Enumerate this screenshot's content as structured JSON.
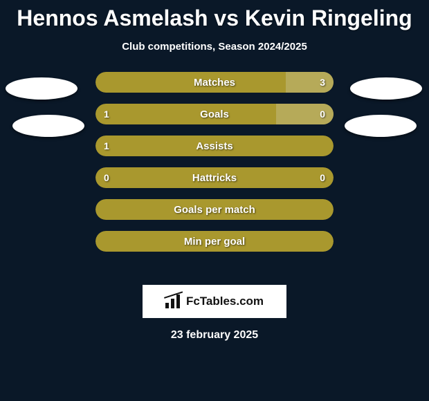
{
  "title": "Hennos Asmelash vs Kevin Ringeling",
  "subtitle": "Club competitions, Season 2024/2025",
  "date": "23 february 2025",
  "brand": {
    "text": "FcTables.com"
  },
  "colors": {
    "background": "#0a1828",
    "bar_primary": "#a9982e",
    "bar_secondary": "#b6aa59",
    "avatar": "#ffffff",
    "brand_bg": "#ffffff",
    "brand_fg": "#111111",
    "text": "#ffffff"
  },
  "avatars": {
    "left": [
      {
        "present": true
      },
      {
        "present": true
      }
    ],
    "right": [
      {
        "present": true
      },
      {
        "present": true
      }
    ]
  },
  "stats": [
    {
      "label": "Matches",
      "left_value": "",
      "right_value": "3",
      "left_pct": 0,
      "right_pct": 20,
      "bg_color": "#a9982e",
      "right_color": "#b6aa59"
    },
    {
      "label": "Goals",
      "left_value": "1",
      "right_value": "0",
      "left_pct": 76,
      "right_pct": 24,
      "bg_color": "#a9982e",
      "right_color": "#b6aa59"
    },
    {
      "label": "Assists",
      "left_value": "1",
      "right_value": "",
      "left_pct": 100,
      "right_pct": 0,
      "bg_color": "#a9982e",
      "right_color": "#b6aa59"
    },
    {
      "label": "Hattricks",
      "left_value": "0",
      "right_value": "0",
      "left_pct": 100,
      "right_pct": 0,
      "bg_color": "#a9982e",
      "right_color": "#b6aa59"
    },
    {
      "label": "Goals per match",
      "left_value": "",
      "right_value": "",
      "left_pct": 100,
      "right_pct": 0,
      "bg_color": "#a9982e",
      "right_color": "#b6aa59"
    },
    {
      "label": "Min per goal",
      "left_value": "",
      "right_value": "",
      "left_pct": 100,
      "right_pct": 0,
      "bg_color": "#a9982e",
      "right_color": "#b6aa59"
    }
  ],
  "bar_style": {
    "height": 30,
    "gap": 16,
    "radius": 16,
    "label_fontsize": 15,
    "value_fontsize": 14
  }
}
